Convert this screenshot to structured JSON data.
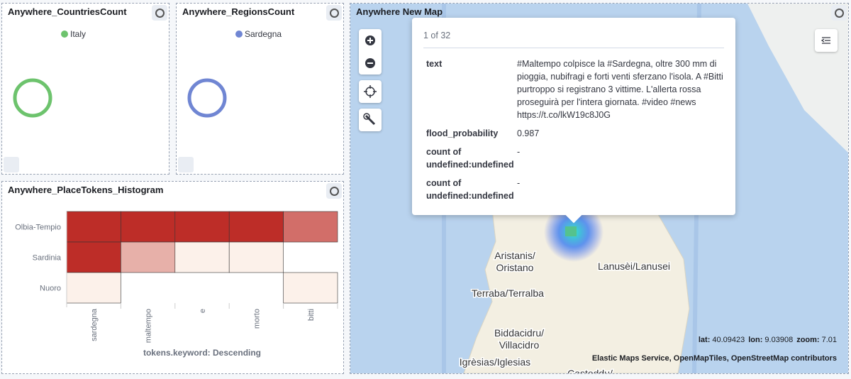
{
  "panels": {
    "countries": {
      "title": "Anywhere_CountriesCount",
      "chart": {
        "type": "pie",
        "categories": [
          "Italy"
        ],
        "values": [
          100
        ],
        "colors": [
          "#6dc36d"
        ]
      }
    },
    "regions": {
      "title": "Anywhere_RegionsCount",
      "chart": {
        "type": "pie",
        "categories": [
          "Sardegna"
        ],
        "values": [
          100
        ],
        "colors": [
          "#7086d3"
        ]
      }
    },
    "histogram": {
      "title": "Anywhere_PlaceTokens_Histogram",
      "chart": {
        "type": "heatmap",
        "x_categories": [
          "sardegna",
          "maltempo",
          "e",
          "morto",
          "bitti"
        ],
        "y_categories": [
          "Olbia-Tempio",
          "Sardinia",
          "Nuoro"
        ],
        "values": [
          [
            4,
            4,
            4,
            4,
            3
          ],
          [
            4,
            2,
            1,
            1,
            null
          ],
          [
            1,
            null,
            null,
            null,
            1
          ]
        ],
        "xlabel": "tokens.keyword: Descending",
        "colors": [
          "#fcf1ea",
          "#bd2d28"
        ]
      }
    },
    "map": {
      "title": "Anywhere New Map",
      "popup": {
        "pager": "1 of 32",
        "rows": [
          {
            "key": "text",
            "value": "#Maltempo colpisce la #Sardegna, oltre 300 mm di pioggia, nubifragi e forti venti sferzano l'isola. A #Bitti purtroppo si registrano 3 vittime. L'allerta rossa proseguirà per l'intera giornata. #video #news https://t.co/lkW19c8J0G"
          },
          {
            "key": "flood_probability",
            "value": 0.987
          },
          {
            "key": "count of undefined:undefined",
            "value": "-"
          },
          {
            "key": "count of undefined:undefined",
            "value": "-"
          }
        ]
      },
      "places": [
        "Aristanis/\nOristano",
        "Lanusèi/Lanusei",
        "Terraba/Terralba",
        "Biddacidru/\nVillacidro",
        "Igrèsias/Iglesias",
        "Casteddu/"
      ],
      "coords": [
        {
          "label": "lat:",
          "value": 40.09423
        },
        {
          "label": "lon:",
          "value": 9.03908
        },
        {
          "label": "zoom:",
          "value": 7.01
        }
      ],
      "attribution": "Elastic Maps Service, OpenMapTiles, OpenStreetMap contributors"
    }
  }
}
